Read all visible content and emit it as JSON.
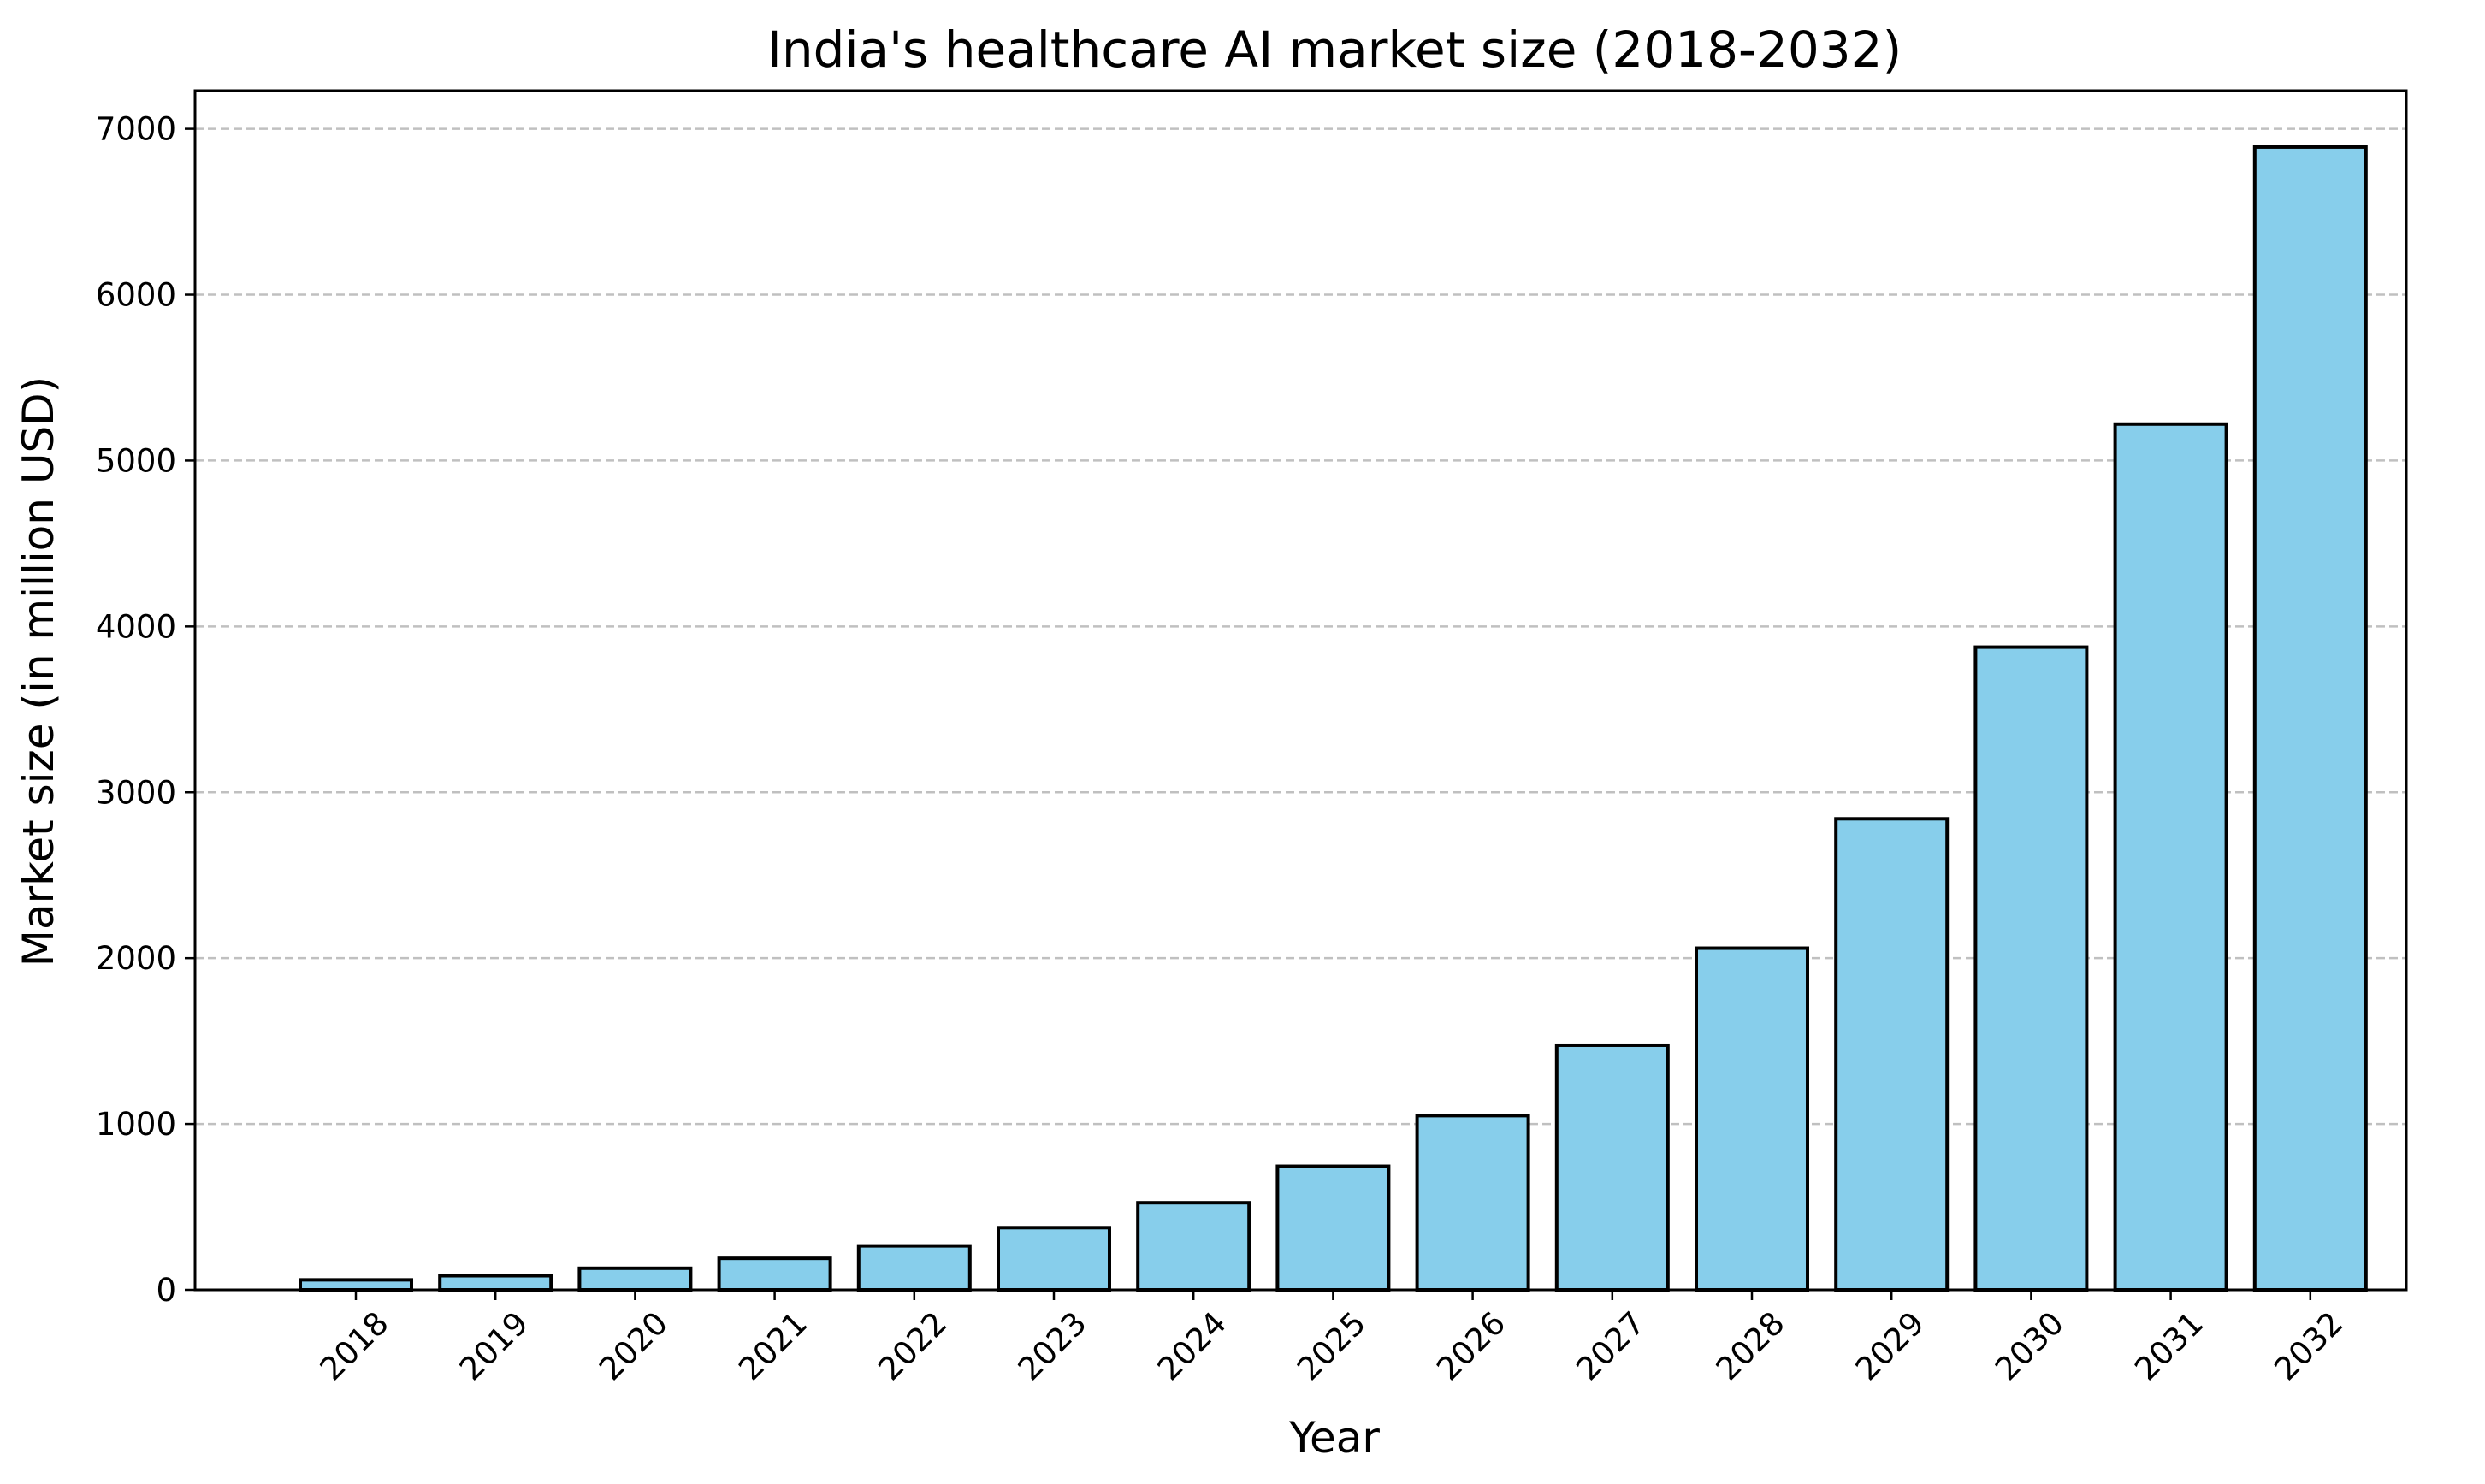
{
  "chart_data": {
    "type": "bar",
    "title": "India's healthcare AI market size (2018-2032)",
    "xlabel": "Year",
    "ylabel": "Market size (in million USD)",
    "categories": [
      "2018",
      "2019",
      "2020",
      "2021",
      "2022",
      "2023",
      "2024",
      "2025",
      "2026",
      "2027",
      "2028",
      "2029",
      "2030",
      "2031",
      "2032"
    ],
    "values": [
      60,
      85,
      130,
      190,
      265,
      375,
      525,
      745,
      1050,
      1475,
      2060,
      2840,
      3875,
      5220,
      6890
    ],
    "ylim": [
      0,
      7230
    ],
    "yticks": [
      0,
      1000,
      2000,
      3000,
      4000,
      5000,
      6000,
      7000
    ],
    "grid": "y-dashed",
    "legend": "none",
    "colors": {
      "bar_fill": "#87CEEB",
      "bar_edge": "#000000",
      "grid": "#c0c0c0"
    }
  }
}
